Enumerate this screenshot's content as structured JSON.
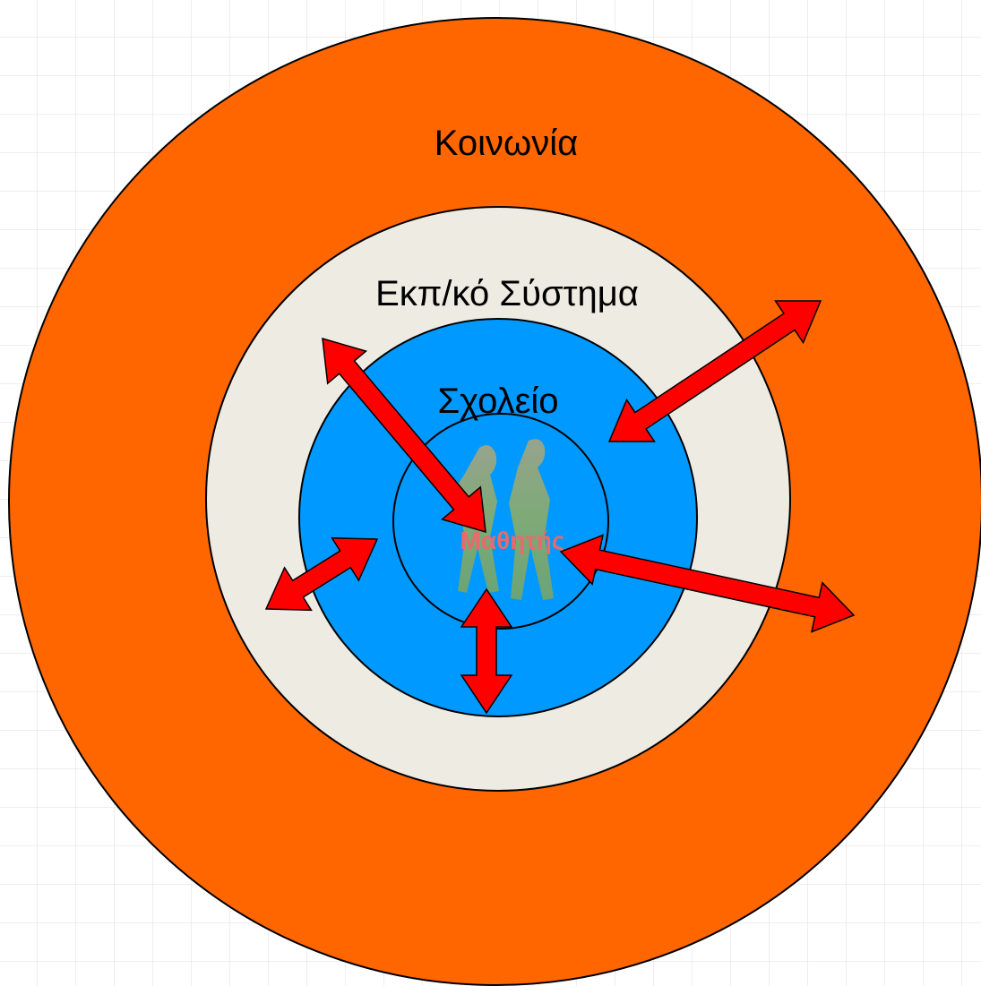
{
  "labels": {
    "society": "Κοινωνία",
    "education_system": "Εκπ/κό Σύστημα",
    "school": "Σχολείο",
    "students": "Μαθητής"
  }
}
